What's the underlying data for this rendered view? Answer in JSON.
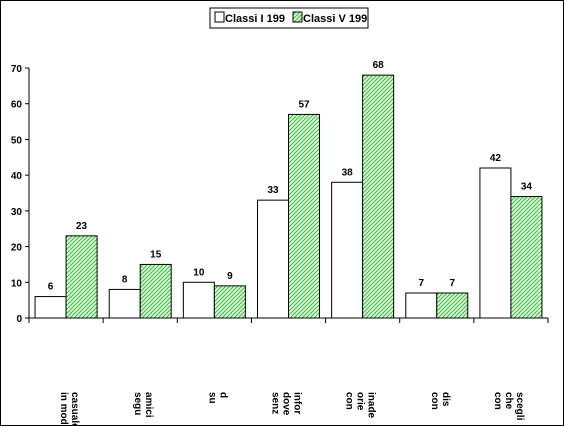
{
  "chart_data": {
    "type": "bar",
    "legend_position": "top-center",
    "grid": false,
    "ylim": [
      0,
      70
    ],
    "yticks": [
      "0",
      "10",
      "20",
      "30",
      "40",
      "50",
      "60",
      "70"
    ],
    "categories": [
      [
        "casuale",
        "in modo"
      ],
      [
        "amici",
        "segu"
      ],
      [
        "d",
        "su"
      ],
      [
        "infor",
        "dove",
        "senz"
      ],
      [
        "inade",
        "orie",
        "con"
      ],
      [
        "dis",
        "con"
      ],
      [
        "scegli",
        "che",
        "con"
      ]
    ],
    "series": [
      {
        "name": "Classi I 199",
        "values": [
          6,
          8,
          10,
          33,
          38,
          7,
          42
        ],
        "color": "#ffffff",
        "pattern": "none"
      },
      {
        "name": "Classi V 199",
        "values": [
          23,
          15,
          9,
          57,
          68,
          7,
          34
        ],
        "color": "#33cc33",
        "pattern": "diagonal-hatch"
      }
    ]
  }
}
